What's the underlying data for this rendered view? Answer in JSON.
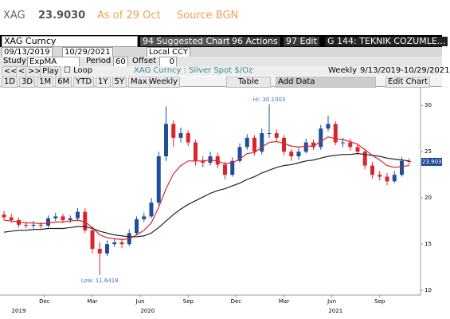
{
  "header": {
    "ticker": "XAG",
    "price": "23.9030",
    "as_of": "As of 29 Oct",
    "source": "Source BGN"
  },
  "toolbar": {
    "security": "XAG Curncy",
    "suggested": "94 Suggested Charts",
    "actions": "96 Actions",
    "edit": "97 Edit",
    "template": "G 144: TEKNIK COZUMLE...",
    "start_date": "09/13/2019",
    "end_date": "10/29/2021",
    "currency": "Local CCY",
    "study_label": "Study",
    "study": "ExpMA",
    "period_label": "Period",
    "period": "60",
    "offset_label": "Offset",
    "offset": "0",
    "nav": [
      "<<",
      "<",
      ">>",
      "Play"
    ],
    "loop": "Loop",
    "description": "XAG Curncy : Silver Spot $/Oz",
    "frequency": "Weekly",
    "range": "9/13/2019-10/29/2021",
    "periods": [
      "1D",
      "3D",
      "1M",
      "6M",
      "YTD",
      "1Y",
      "5Y",
      "Max"
    ],
    "period_select": "Weekly",
    "table": "Table",
    "add_data": "Add Data",
    "edit_chart": "Edit Chart"
  },
  "chart_data": {
    "type": "candlestick",
    "up_color": "#1f4e9a",
    "down_color": "#d9262c",
    "open": [
      18.2,
      17.9,
      17.6,
      17.1,
      17.0,
      17.1,
      17.0,
      17.8,
      18.0,
      17.6,
      17.8,
      18.5,
      16.5,
      14.5,
      14.0,
      15.0,
      15.2,
      15.0,
      16.2,
      17.7,
      18.0,
      19.5,
      24.5,
      28.0,
      26.5,
      27.0,
      26.0,
      24.0,
      23.8,
      24.5,
      23.6,
      22.5,
      24.0,
      25.5,
      26.5,
      25.0,
      27.0,
      27.0,
      26.5,
      25.0,
      24.5,
      25.0,
      26.0,
      25.5,
      27.5,
      28.0,
      26.0,
      26.0,
      25.5,
      25.0,
      23.5,
      22.5,
      22.3,
      21.8,
      22.5,
      24.0
    ],
    "high": [
      18.6,
      18.3,
      17.9,
      17.4,
      17.5,
      17.4,
      18.1,
      18.4,
      18.3,
      18.1,
      18.9,
      18.9,
      16.9,
      15.2,
      15.4,
      15.6,
      15.6,
      16.6,
      18.0,
      18.4,
      20.0,
      25.0,
      29.9,
      28.4,
      27.6,
      27.3,
      26.3,
      24.5,
      25.0,
      24.9,
      23.9,
      24.4,
      25.9,
      26.9,
      26.8,
      27.5,
      30.1,
      27.4,
      26.8,
      25.3,
      25.4,
      26.4,
      26.3,
      27.9,
      28.9,
      28.3,
      26.5,
      26.4,
      25.8,
      25.3,
      23.9,
      22.9,
      22.7,
      22.9,
      24.4,
      24.3
    ],
    "low": [
      17.6,
      17.3,
      16.8,
      16.7,
      16.7,
      16.7,
      16.8,
      17.5,
      17.3,
      17.3,
      17.5,
      16.2,
      14.0,
      11.64,
      13.7,
      14.7,
      14.6,
      14.8,
      16.0,
      17.4,
      17.8,
      19.2,
      24.0,
      25.5,
      26.0,
      25.6,
      23.5,
      23.3,
      23.5,
      23.2,
      22.0,
      22.3,
      23.8,
      25.2,
      24.6,
      24.7,
      26.5,
      26.0,
      24.6,
      24.0,
      24.1,
      24.8,
      25.2,
      25.2,
      27.2,
      25.7,
      25.5,
      25.1,
      24.7,
      23.1,
      22.1,
      21.9,
      21.4,
      21.6,
      22.3,
      23.6
    ],
    "close": [
      17.9,
      17.6,
      17.1,
      17.0,
      17.1,
      17.0,
      17.8,
      18.0,
      17.6,
      17.8,
      18.5,
      16.5,
      14.5,
      14.0,
      15.0,
      15.2,
      15.0,
      16.2,
      17.7,
      18.0,
      19.5,
      24.5,
      28.0,
      26.5,
      27.0,
      26.0,
      24.0,
      23.8,
      24.5,
      23.6,
      22.5,
      24.0,
      25.5,
      26.5,
      25.0,
      27.0,
      27.0,
      26.5,
      25.0,
      24.5,
      25.0,
      26.0,
      25.5,
      27.5,
      28.0,
      26.0,
      26.0,
      25.5,
      25.0,
      23.5,
      22.5,
      22.3,
      21.8,
      22.5,
      24.0,
      23.9
    ],
    "series": [
      {
        "color": "#d9262c",
        "values": [
          17.6,
          17.5,
          17.4,
          17.3,
          17.3,
          17.2,
          17.3,
          17.4,
          17.4,
          17.5,
          17.6,
          17.4,
          16.8,
          16.0,
          15.7,
          15.6,
          15.5,
          15.6,
          16.0,
          16.5,
          17.3,
          19.0,
          21.0,
          22.6,
          23.5,
          24.0,
          24.0,
          24.0,
          24.1,
          24.0,
          23.7,
          23.8,
          24.2,
          24.8,
          24.9,
          25.5,
          26.0,
          26.1,
          25.9,
          25.6,
          25.5,
          25.6,
          25.6,
          26.1,
          26.6,
          26.4,
          26.3,
          26.1,
          25.8,
          25.2,
          24.6,
          24.1,
          23.5,
          23.3,
          23.4,
          23.5
        ]
      },
      {
        "color": "#222222",
        "values": [
          16.3,
          16.4,
          16.5,
          16.5,
          16.6,
          16.6,
          16.7,
          16.7,
          16.7,
          16.8,
          16.9,
          16.9,
          16.7,
          16.4,
          16.2,
          16.0,
          15.9,
          15.8,
          15.8,
          15.9,
          16.2,
          16.8,
          17.5,
          18.2,
          18.8,
          19.3,
          19.7,
          20.1,
          20.5,
          20.8,
          21.0,
          21.3,
          21.6,
          22.0,
          22.3,
          22.7,
          23.0,
          23.3,
          23.5,
          23.6,
          23.8,
          24.0,
          24.1,
          24.3,
          24.5,
          24.6,
          24.7,
          24.7,
          24.8,
          24.7,
          24.6,
          24.5,
          24.3,
          24.2,
          24.1,
          24.0
        ]
      }
    ],
    "annotations": [
      "Hi: 30.1003",
      "Low: 11.6418"
    ],
    "ylim": [
      9.5,
      32
    ],
    "yticks": [
      10,
      15,
      20,
      25,
      30
    ],
    "months": [
      "Dec",
      "Mar",
      "Jun",
      "Sep",
      "Dec",
      "Mar",
      "Jun",
      "Sep"
    ],
    "years": [
      "2019",
      "2020",
      "2021"
    ]
  }
}
